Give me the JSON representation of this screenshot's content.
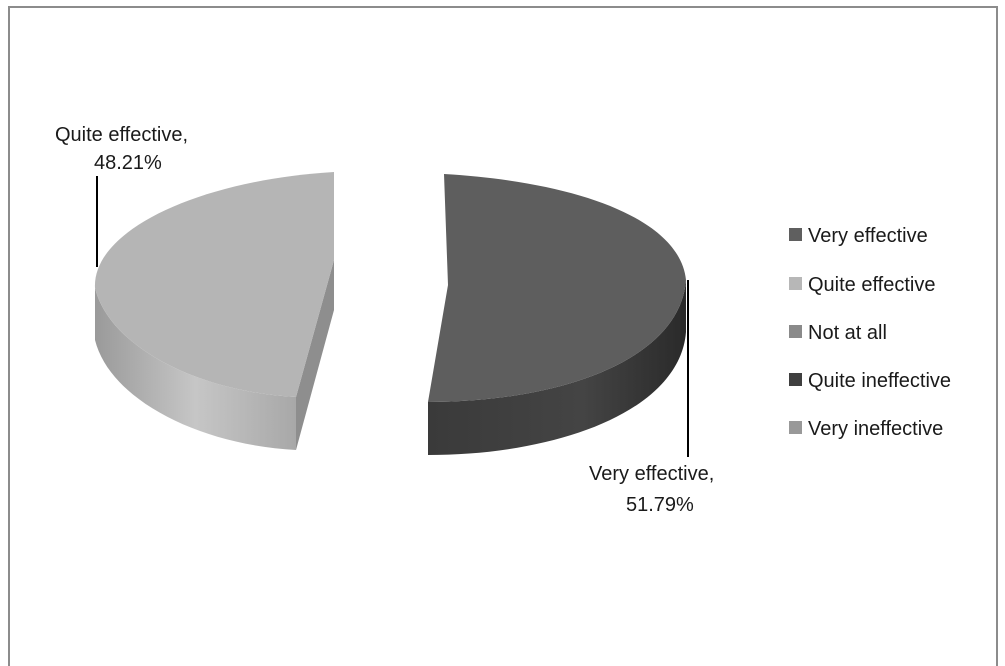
{
  "chart_data": {
    "type": "pie",
    "style": "3d-exploded",
    "categories": [
      "Very effective",
      "Quite effective",
      "Not at all",
      "Quite ineffective",
      "Very ineffective"
    ],
    "values": [
      51.79,
      48.21,
      0,
      0,
      0
    ],
    "colors": [
      "#5f5f5f",
      "#b7b7b7",
      "#8a8a8a",
      "#3f3f3f",
      "#999999"
    ],
    "data_labels": [
      {
        "line1": "Very effective,",
        "line2": "51.79%"
      },
      {
        "line1": "Quite effective,",
        "line2": "48.21%"
      }
    ],
    "legend_position": "right"
  }
}
